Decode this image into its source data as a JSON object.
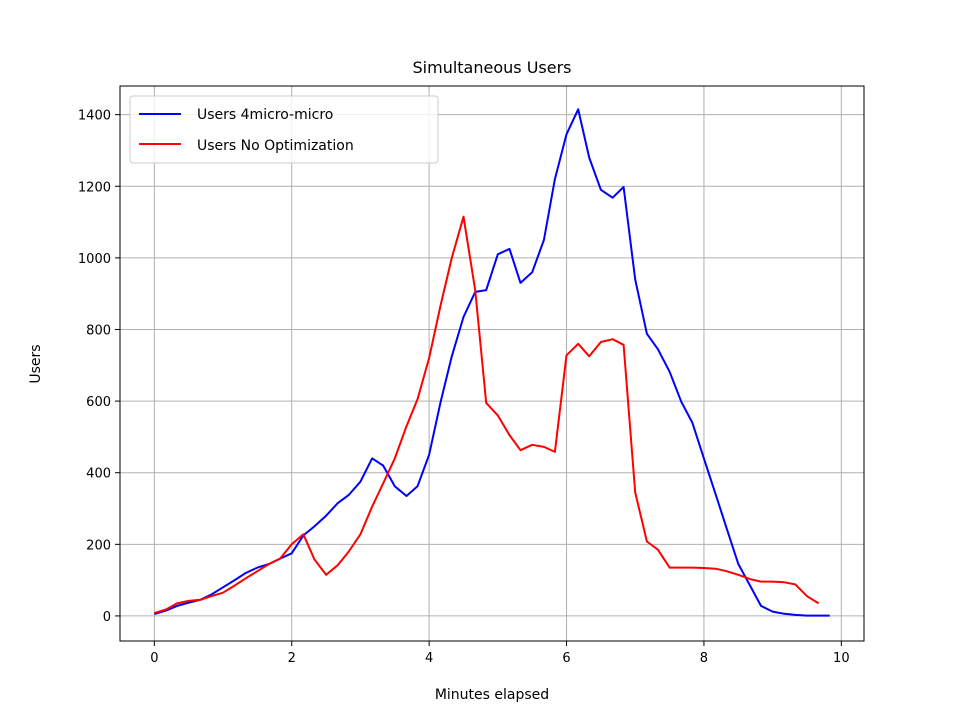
{
  "chart_data": {
    "type": "line",
    "title": "Simultaneous Users",
    "xlabel": "Minutes elapsed",
    "ylabel": "Users",
    "xlim": [
      -0.5,
      10.33
    ],
    "ylim": [
      -70,
      1480
    ],
    "xticks": [
      0,
      2,
      4,
      6,
      8,
      10
    ],
    "yticks": [
      0,
      200,
      400,
      600,
      800,
      1000,
      1200,
      1400
    ],
    "grid": true,
    "legend": "top-left",
    "series": [
      {
        "name": "Users 4micro-micro",
        "color": "#0000ff",
        "x": [
          0,
          0.17,
          0.33,
          0.5,
          0.67,
          0.83,
          1.0,
          1.17,
          1.33,
          1.5,
          1.67,
          1.83,
          2.0,
          2.17,
          2.33,
          2.5,
          2.67,
          2.83,
          3.0,
          3.17,
          3.33,
          3.5,
          3.67,
          3.83,
          4.0,
          4.17,
          4.33,
          4.5,
          4.67,
          4.83,
          5.0,
          5.17,
          5.33,
          5.5,
          5.67,
          5.83,
          6.0,
          6.17,
          6.33,
          6.5,
          6.67,
          6.83,
          7.0,
          7.17,
          7.33,
          7.5,
          7.67,
          7.83,
          8.0,
          8.17,
          8.33,
          8.5,
          8.67,
          8.83,
          9.0,
          9.17,
          9.33,
          9.5,
          9.67,
          9.83
        ],
        "y": [
          5,
          15,
          28,
          37,
          45,
          60,
          80,
          100,
          120,
          135,
          145,
          160,
          175,
          225,
          250,
          280,
          315,
          338,
          375,
          440,
          420,
          362,
          335,
          362,
          450,
          600,
          725,
          835,
          905,
          910,
          1010,
          1025,
          930,
          960,
          1050,
          1220,
          1345,
          1415,
          1280,
          1190,
          1168,
          1198,
          940,
          788,
          745,
          682,
          598,
          540,
          440,
          340,
          245,
          145,
          85,
          28,
          12,
          6,
          3,
          1,
          1,
          1
        ]
      },
      {
        "name": "Users No Optimization",
        "color": "#ff0000",
        "x": [
          0,
          0.17,
          0.33,
          0.5,
          0.67,
          0.83,
          1.0,
          1.17,
          1.33,
          1.5,
          1.67,
          1.83,
          2.0,
          2.17,
          2.33,
          2.5,
          2.67,
          2.83,
          3.0,
          3.17,
          3.33,
          3.5,
          3.67,
          3.83,
          4.0,
          4.17,
          4.33,
          4.5,
          4.67,
          4.83,
          5.0,
          5.17,
          5.33,
          5.5,
          5.67,
          5.83,
          6.0,
          6.17,
          6.33,
          6.5,
          6.67,
          6.83,
          7.0,
          7.17,
          7.33,
          7.5,
          7.67,
          7.83,
          8.0,
          8.17,
          8.33,
          8.5,
          8.67,
          8.83,
          9.0,
          9.17,
          9.33,
          9.5,
          9.67
        ],
        "y": [
          8,
          18,
          35,
          42,
          45,
          55,
          65,
          85,
          105,
          125,
          145,
          160,
          200,
          228,
          158,
          115,
          142,
          180,
          228,
          305,
          370,
          440,
          530,
          605,
          720,
          870,
          1000,
          1115,
          910,
          595,
          560,
          505,
          463,
          478,
          472,
          458,
          728,
          760,
          725,
          765,
          773,
          757,
          345,
          208,
          185,
          135,
          135,
          135,
          134,
          132,
          125,
          115,
          103,
          96,
          96,
          94,
          88,
          55,
          35
        ]
      }
    ]
  }
}
